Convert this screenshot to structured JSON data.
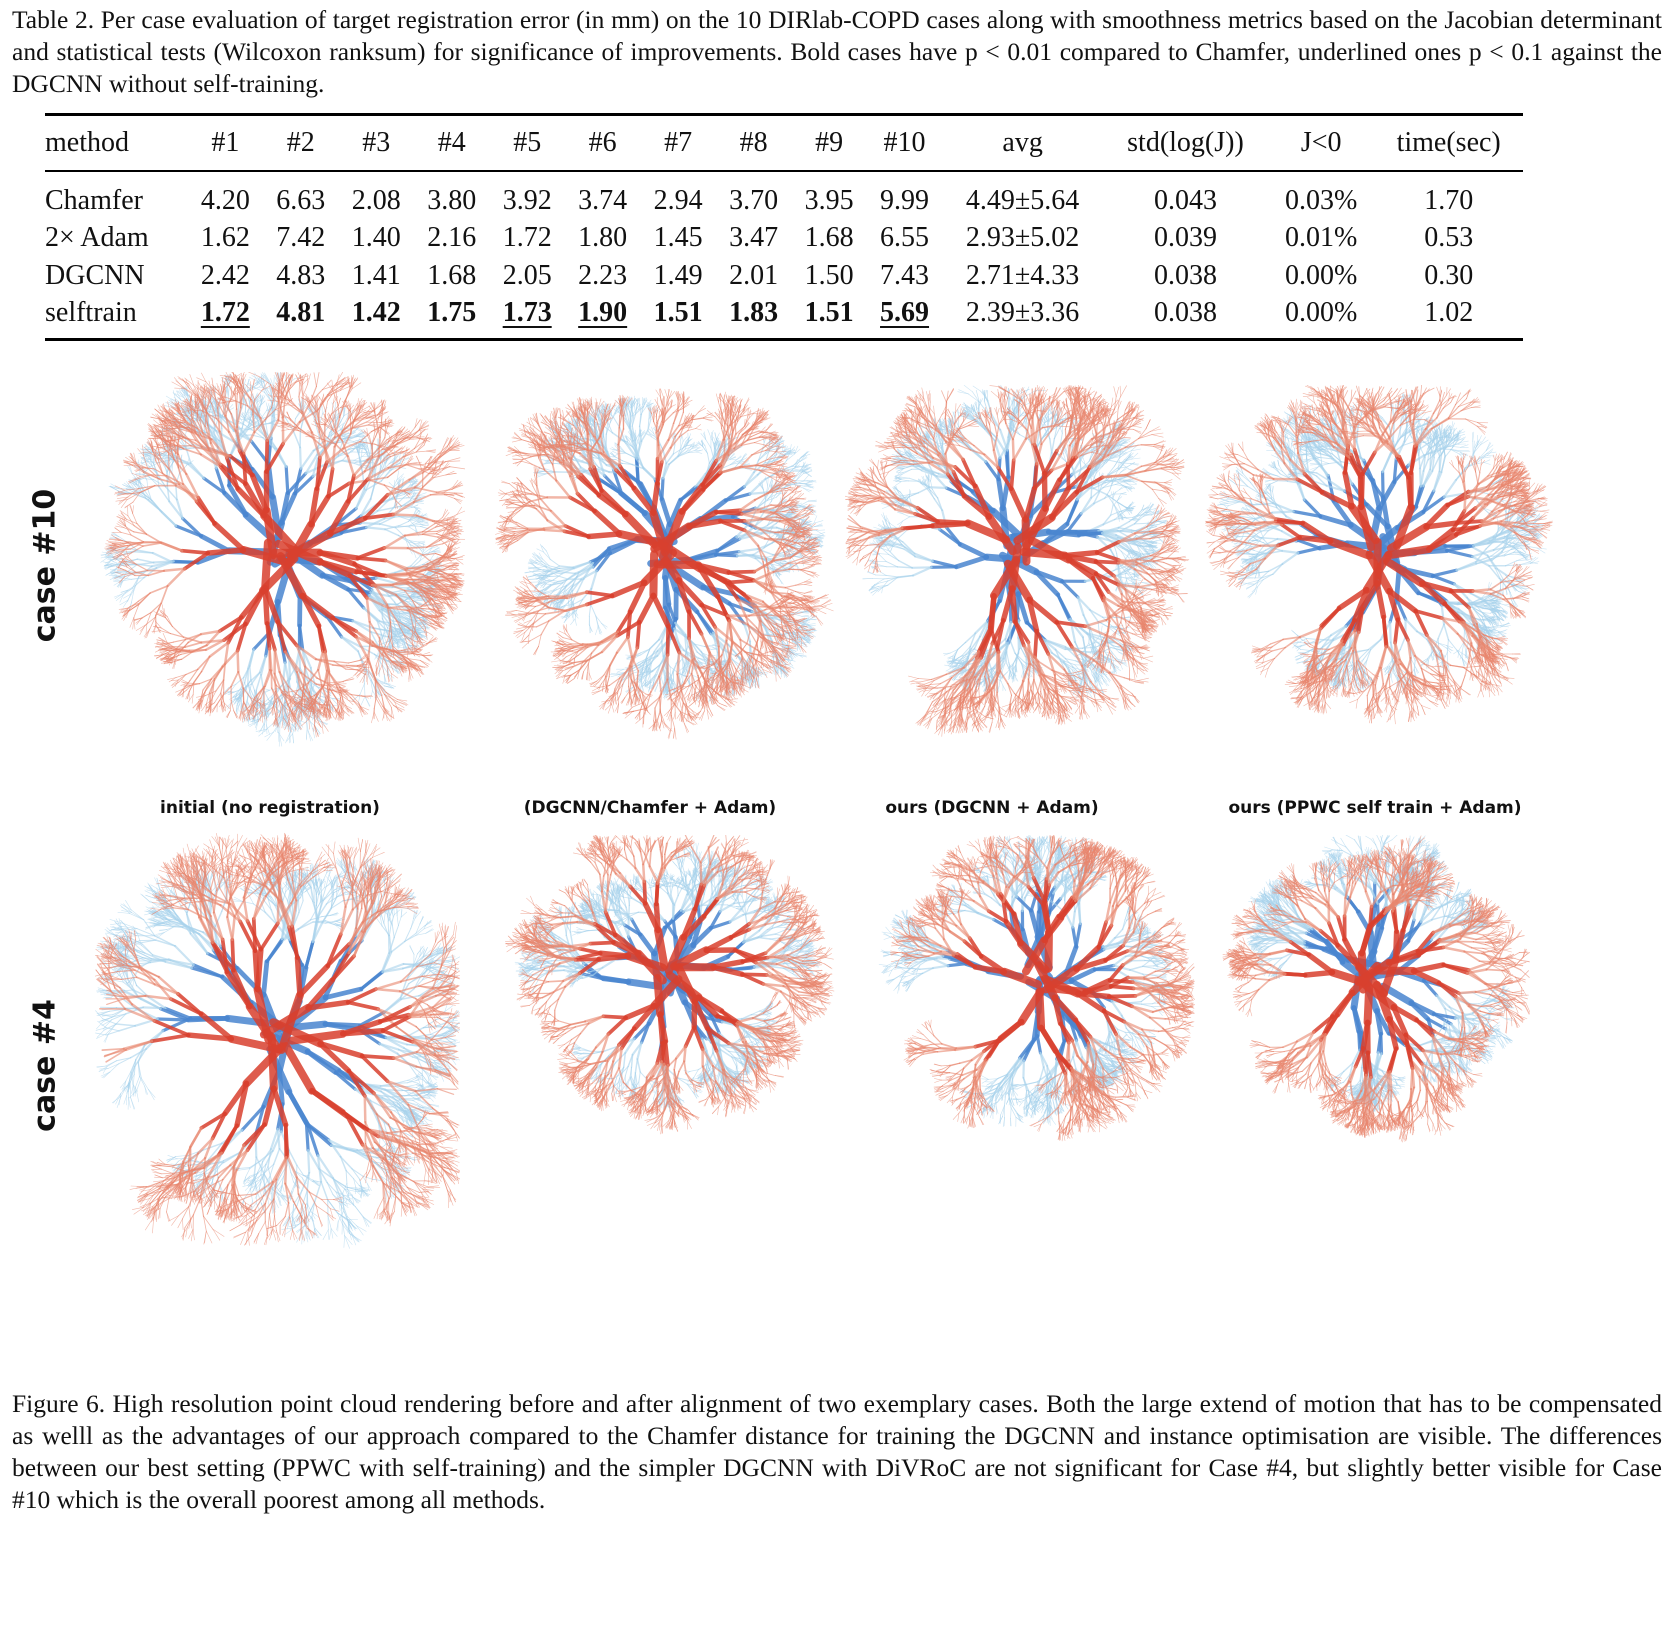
{
  "table_caption": "Table 2. Per case evaluation of target registration error (in mm) on the 10 DIRlab-COPD cases along with smoothness metrics based on the Jacobian determinant and statistical tests (Wilcoxon ranksum) for significance of improvements. Bold cases have p < 0.01 compared to Chamfer, underlined ones p < 0.1 against the DGCNN without self-training.",
  "table": {
    "headers": [
      "method",
      "#1",
      "#2",
      "#3",
      "#4",
      "#5",
      "#6",
      "#7",
      "#8",
      "#9",
      "#10",
      "avg",
      "std(log(J))",
      "J<0",
      "time(sec)"
    ],
    "rows": [
      {
        "cells": [
          "Chamfer",
          "4.20",
          "6.63",
          "2.08",
          "3.80",
          "3.92",
          "3.74",
          "2.94",
          "3.70",
          "3.95",
          "9.99",
          "4.49±5.64",
          "0.043",
          "0.03%",
          "1.70"
        ],
        "bold": [],
        "underline": []
      },
      {
        "cells": [
          "2× Adam",
          "1.62",
          "7.42",
          "1.40",
          "2.16",
          "1.72",
          "1.80",
          "1.45",
          "3.47",
          "1.68",
          "6.55",
          "2.93±5.02",
          "0.039",
          "0.01%",
          "0.53"
        ],
        "bold": [],
        "underline": []
      },
      {
        "cells": [
          "DGCNN",
          "2.42",
          "4.83",
          "1.41",
          "1.68",
          "2.05",
          "2.23",
          "1.49",
          "2.01",
          "1.50",
          "7.43",
          "2.71±4.33",
          "0.038",
          "0.00%",
          "0.30"
        ],
        "bold": [],
        "underline": []
      },
      {
        "cells": [
          "selftrain",
          "1.72",
          "4.81",
          "1.42",
          "1.75",
          "1.73",
          "1.90",
          "1.51",
          "1.83",
          "1.51",
          "5.69",
          "2.39±3.36",
          "0.038",
          "0.00%",
          "1.02"
        ],
        "bold": [
          1,
          2,
          3,
          4,
          5,
          6,
          7,
          8,
          9,
          10
        ],
        "underline": [
          1,
          5,
          6,
          10
        ]
      }
    ]
  },
  "figure": {
    "row_labels": [
      "case #10",
      "case #4"
    ],
    "column_labels": [
      "initial (no registration)",
      "(DGCNN/Chamfer + Adam)",
      "ours (DGCNN + Adam)",
      "ours (PPWC self train + Adam)"
    ],
    "colors": {
      "fixed": "#d9402e",
      "moving": "#4a86d0",
      "fine_fixed": "#e8866e",
      "fine_moving": "#a9d3ec"
    }
  },
  "figure_caption": "Figure 6. High resolution point cloud rendering before and after alignment of two exemplary cases. Both the large extend of motion that has to be compensated as welll as the advantages of our approach compared to the Chamfer distance for training the DGCNN and instance optimisation are visible. The differences between our best setting (PPWC with self-training) and the simpler DGCNN with DiVRoC are not significant for Case #4, but slightly better visible for Case #10 which is the overall poorest among all methods."
}
